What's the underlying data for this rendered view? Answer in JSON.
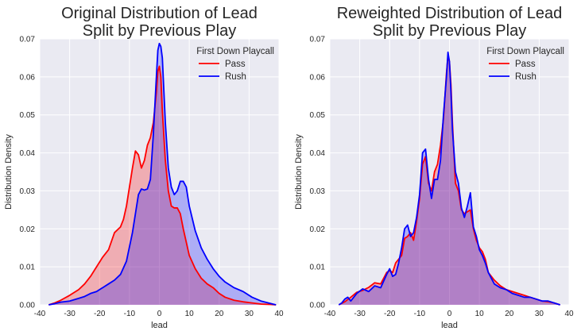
{
  "chart_data": [
    {
      "type": "area",
      "title_line1": "Original Distribution of Lead",
      "title_line2": "Split by Previous Play",
      "xlabel": "lead",
      "ylabel": "Distribution Density",
      "xlim": [
        -40,
        40
      ],
      "ylim": [
        0,
        0.07
      ],
      "xticks": [
        "-40",
        "-30",
        "-20",
        "-10",
        "0",
        "10",
        "20",
        "30",
        "40"
      ],
      "yticks": [
        "0.00",
        "0.01",
        "0.02",
        "0.03",
        "0.04",
        "0.05",
        "0.06",
        "0.07"
      ],
      "grid": true,
      "legend": {
        "title": "First Down Playcall",
        "placement": "top-right"
      },
      "series": [
        {
          "name": "Pass",
          "color": "#ff0000",
          "fill": "#f7a5a9",
          "x": [
            -37,
            -35,
            -33,
            -30,
            -27,
            -25,
            -23,
            -21,
            -19,
            -17,
            -15,
            -13,
            -12,
            -11,
            -10,
            -9,
            -8,
            -7,
            -6,
            -5,
            -4,
            -3,
            -2,
            -1,
            -0.5,
            0,
            0.5,
            1,
            2,
            3,
            4,
            5,
            6,
            7,
            8,
            10,
            12,
            14,
            16,
            18,
            20,
            22,
            25,
            28,
            31,
            34,
            37,
            39
          ],
          "y": [
            0.0,
            0.0005,
            0.0012,
            0.0025,
            0.004,
            0.0055,
            0.0075,
            0.01,
            0.0125,
            0.0145,
            0.019,
            0.0205,
            0.0225,
            0.026,
            0.031,
            0.036,
            0.0405,
            0.0395,
            0.036,
            0.038,
            0.042,
            0.044,
            0.048,
            0.056,
            0.0615,
            0.0628,
            0.06,
            0.051,
            0.038,
            0.03,
            0.026,
            0.0255,
            0.0255,
            0.024,
            0.02,
            0.013,
            0.0095,
            0.007,
            0.0055,
            0.0045,
            0.003,
            0.002,
            0.0012,
            0.0008,
            0.0005,
            0.0002,
            0.0001,
            0.0
          ]
        },
        {
          "name": "Rush",
          "color": "#0000ff",
          "fill": "#a8a9f5",
          "x": [
            -37,
            -35,
            -33,
            -30,
            -27,
            -25,
            -23,
            -21,
            -19,
            -17,
            -15,
            -13,
            -11,
            -9,
            -8,
            -7,
            -6,
            -5,
            -4,
            -3,
            -2,
            -1,
            -0.5,
            0,
            0.5,
            1,
            2,
            3,
            4,
            5,
            6,
            7,
            8,
            9,
            10,
            12,
            14,
            16,
            18,
            20,
            22,
            25,
            28,
            31,
            34,
            37,
            39
          ],
          "y": [
            0.0,
            0.0003,
            0.0007,
            0.001,
            0.0017,
            0.0022,
            0.003,
            0.0035,
            0.0045,
            0.0055,
            0.0065,
            0.008,
            0.0115,
            0.019,
            0.024,
            0.029,
            0.0305,
            0.0302,
            0.0305,
            0.033,
            0.045,
            0.06,
            0.067,
            0.0688,
            0.068,
            0.065,
            0.048,
            0.036,
            0.031,
            0.029,
            0.03,
            0.0325,
            0.0325,
            0.031,
            0.026,
            0.0195,
            0.015,
            0.012,
            0.0095,
            0.0075,
            0.006,
            0.0045,
            0.0035,
            0.002,
            0.001,
            0.0004,
            0.0
          ]
        }
      ]
    },
    {
      "type": "area",
      "title_line1": "Reweighted Distribution of Lead",
      "title_line2": "Split by Previous Play",
      "xlabel": "lead",
      "ylabel": "Distribution Density",
      "xlim": [
        -40,
        40
      ],
      "ylim": [
        0,
        0.07
      ],
      "xticks": [
        "-40",
        "-30",
        "-20",
        "-10",
        "0",
        "10",
        "20",
        "30",
        "40"
      ],
      "yticks": [
        "0.00",
        "0.01",
        "0.02",
        "0.03",
        "0.04",
        "0.05",
        "0.06",
        "0.07"
      ],
      "grid": true,
      "legend": {
        "title": "First Down Playcall",
        "placement": "top-right"
      },
      "series": [
        {
          "name": "Pass",
          "color": "#ff0000",
          "fill": "#f7a5a9",
          "x": [
            -37,
            -35,
            -33,
            -31,
            -29,
            -27,
            -25,
            -23,
            -21,
            -20,
            -19,
            -18,
            -17,
            -16,
            -15,
            -14,
            -13,
            -12,
            -11,
            -10,
            -9,
            -8,
            -7,
            -6,
            -5,
            -4,
            -3,
            -2,
            -1,
            -0.5,
            0,
            0.5,
            1,
            2,
            3,
            4,
            5,
            6,
            7,
            8,
            9,
            10,
            11,
            12,
            13,
            15,
            17,
            19,
            21,
            23,
            25,
            27,
            29,
            31,
            33,
            35,
            37
          ],
          "y": [
            0.0,
            0.0008,
            0.002,
            0.0033,
            0.0038,
            0.0046,
            0.0058,
            0.0055,
            0.0085,
            0.009,
            0.0085,
            0.011,
            0.012,
            0.013,
            0.0175,
            0.018,
            0.019,
            0.017,
            0.022,
            0.028,
            0.037,
            0.039,
            0.032,
            0.03,
            0.035,
            0.037,
            0.042,
            0.049,
            0.061,
            0.0655,
            0.064,
            0.058,
            0.048,
            0.032,
            0.03,
            0.025,
            0.024,
            0.0245,
            0.025,
            0.02,
            0.017,
            0.015,
            0.014,
            0.012,
            0.0085,
            0.0065,
            0.005,
            0.004,
            0.0035,
            0.003,
            0.0025,
            0.002,
            0.0015,
            0.001,
            0.0008,
            0.0005,
            0.0
          ]
        },
        {
          "name": "Rush",
          "color": "#0000ff",
          "fill": "#a8a9f5",
          "x": [
            -37,
            -36,
            -35,
            -34,
            -33,
            -31,
            -29,
            -27,
            -25,
            -23,
            -21,
            -20,
            -19,
            -18,
            -17,
            -16,
            -15,
            -14,
            -13,
            -12,
            -11,
            -10,
            -9,
            -8,
            -7,
            -6,
            -5,
            -4,
            -3,
            -2,
            -1,
            -0.5,
            0,
            0.5,
            1,
            2,
            3,
            4,
            5,
            6,
            7,
            8,
            9,
            10,
            11,
            12,
            13,
            15,
            17,
            19,
            21,
            23,
            25,
            27,
            29,
            31,
            33,
            35,
            37
          ],
          "y": [
            0.0,
            0.0005,
            0.0015,
            0.002,
            0.001,
            0.003,
            0.0042,
            0.0035,
            0.005,
            0.0045,
            0.008,
            0.0095,
            0.0075,
            0.008,
            0.011,
            0.015,
            0.02,
            0.021,
            0.018,
            0.019,
            0.023,
            0.029,
            0.04,
            0.041,
            0.033,
            0.028,
            0.033,
            0.033,
            0.038,
            0.05,
            0.06,
            0.0665,
            0.064,
            0.056,
            0.046,
            0.035,
            0.032,
            0.0255,
            0.023,
            0.026,
            0.0295,
            0.0205,
            0.018,
            0.0145,
            0.013,
            0.011,
            0.0085,
            0.0055,
            0.0045,
            0.004,
            0.003,
            0.0025,
            0.002,
            0.002,
            0.0015,
            0.001,
            0.001,
            0.0005,
            0.0
          ]
        }
      ]
    }
  ]
}
